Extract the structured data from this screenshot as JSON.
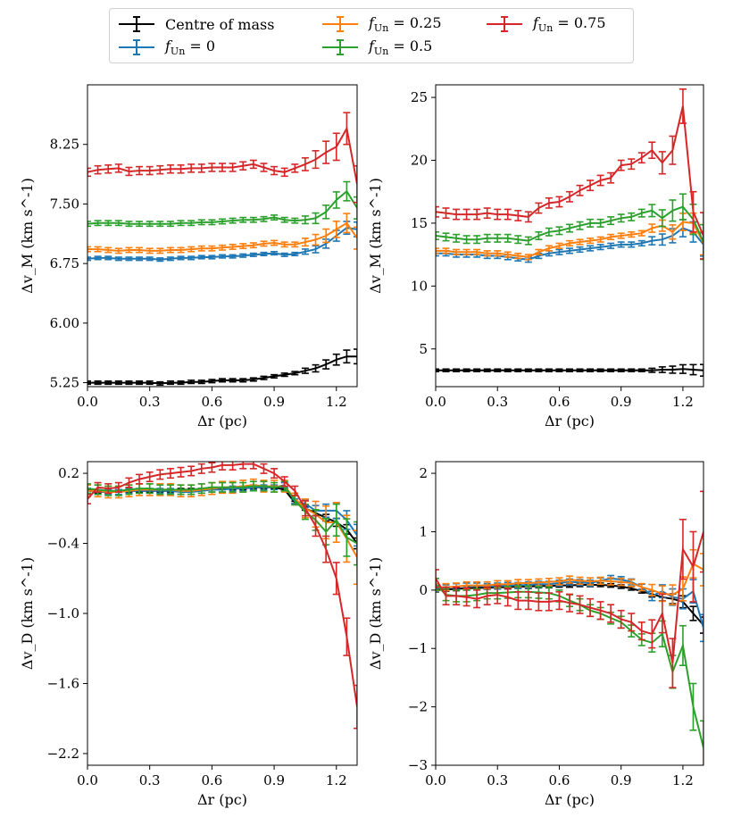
{
  "legend": {
    "items": [
      {
        "label": "Centre of mass",
        "color": "#000000"
      },
      {
        "label": "f_Un = 0",
        "sub": "Un",
        "prefix": "f",
        "suffix": "=  0",
        "color": "#1f77b4"
      },
      {
        "label": "f_Un = 0.25",
        "sub": "Un",
        "prefix": "f",
        "suffix": "=  0.25",
        "color": "#ff7f0e"
      },
      {
        "label": "f_Un = 0.5",
        "sub": "Un",
        "prefix": "f",
        "suffix": "=  0.5",
        "color": "#2ca02c"
      },
      {
        "label": "f_Un = 0.75",
        "sub": "Un",
        "prefix": "f",
        "suffix": "=  0.75",
        "color": "#d62728"
      }
    ]
  },
  "chart_data": [
    {
      "type": "line",
      "panel": "top-left",
      "xlabel": "Δr (pc)",
      "ylabel": "Δv_M (km s^-1)",
      "xlim": [
        0.0,
        1.3
      ],
      "ylim": [
        5.2,
        9.0
      ],
      "xticks": [
        "0.0",
        "0.3",
        "0.6",
        "0.9",
        "1.2"
      ],
      "xtick_values": [
        0.0,
        0.3,
        0.6,
        0.9,
        1.2
      ],
      "yticks": [
        "5.25",
        "6.00",
        "6.75",
        "7.50",
        "8.25"
      ],
      "ytick_values": [
        5.25,
        6.0,
        6.75,
        7.5,
        8.25
      ],
      "x": [
        0.0,
        0.05,
        0.1,
        0.15,
        0.2,
        0.25,
        0.3,
        0.35,
        0.4,
        0.45,
        0.5,
        0.55,
        0.6,
        0.65,
        0.7,
        0.75,
        0.8,
        0.85,
        0.9,
        0.95,
        1.0,
        1.05,
        1.1,
        1.15,
        1.2,
        1.25,
        1.3
      ],
      "series": [
        {
          "name": "Centre of mass",
          "color": "#000000",
          "err": 0.02,
          "values": [
            5.25,
            5.25,
            5.25,
            5.25,
            5.25,
            5.25,
            5.25,
            5.24,
            5.25,
            5.25,
            5.26,
            5.26,
            5.27,
            5.28,
            5.28,
            5.28,
            5.29,
            5.31,
            5.33,
            5.35,
            5.37,
            5.4,
            5.43,
            5.48,
            5.54,
            5.58,
            5.58
          ]
        },
        {
          "name": "f_Un = 0",
          "color": "#1f77b4",
          "err": 0.02,
          "values": [
            6.81,
            6.82,
            6.82,
            6.81,
            6.81,
            6.81,
            6.81,
            6.8,
            6.81,
            6.82,
            6.82,
            6.83,
            6.83,
            6.84,
            6.84,
            6.85,
            6.86,
            6.87,
            6.88,
            6.86,
            6.87,
            6.9,
            6.93,
            7.0,
            7.1,
            7.2,
            7.18
          ]
        },
        {
          "name": "f_Un = 0.25",
          "color": "#ff7f0e",
          "err": 0.03,
          "values": [
            6.93,
            6.93,
            6.92,
            6.91,
            6.92,
            6.92,
            6.91,
            6.91,
            6.92,
            6.92,
            6.93,
            6.94,
            6.94,
            6.95,
            6.96,
            6.97,
            6.98,
            7.0,
            7.01,
            6.99,
            6.99,
            7.02,
            7.05,
            7.1,
            7.18,
            7.26,
            7.07
          ]
        },
        {
          "name": "f_Un = 0.5",
          "color": "#2ca02c",
          "err": 0.03,
          "values": [
            7.25,
            7.26,
            7.26,
            7.26,
            7.25,
            7.25,
            7.25,
            7.25,
            7.25,
            7.26,
            7.26,
            7.27,
            7.27,
            7.28,
            7.29,
            7.3,
            7.3,
            7.31,
            7.33,
            7.3,
            7.29,
            7.3,
            7.32,
            7.4,
            7.55,
            7.66,
            7.45
          ]
        },
        {
          "name": "f_Un = 0.75",
          "color": "#d62728",
          "err": 0.05,
          "values": [
            7.9,
            7.93,
            7.94,
            7.95,
            7.91,
            7.92,
            7.92,
            7.93,
            7.94,
            7.94,
            7.95,
            7.95,
            7.96,
            7.96,
            7.96,
            7.98,
            8.0,
            7.96,
            7.92,
            7.9,
            7.95,
            8.0,
            8.06,
            8.15,
            8.22,
            8.45,
            7.75
          ]
        }
      ]
    },
    {
      "type": "line",
      "panel": "top-right",
      "xlabel": "Δr (pc)",
      "ylabel": "Δv_M (km s^-1)",
      "xlim": [
        0.0,
        1.3
      ],
      "ylim": [
        2.0,
        26.0
      ],
      "xticks": [
        "0.0",
        "0.3",
        "0.6",
        "0.9",
        "1.2"
      ],
      "xtick_values": [
        0.0,
        0.3,
        0.6,
        0.9,
        1.2
      ],
      "yticks": [
        "5",
        "10",
        "15",
        "20",
        "25"
      ],
      "ytick_values": [
        5,
        10,
        15,
        20,
        25
      ],
      "x": [
        0.0,
        0.05,
        0.1,
        0.15,
        0.2,
        0.25,
        0.3,
        0.35,
        0.4,
        0.45,
        0.5,
        0.55,
        0.6,
        0.65,
        0.7,
        0.75,
        0.8,
        0.85,
        0.9,
        0.95,
        1.0,
        1.05,
        1.1,
        1.15,
        1.2,
        1.25,
        1.3
      ],
      "series": [
        {
          "name": "Centre of mass",
          "color": "#000000",
          "err": 0.1,
          "values": [
            3.3,
            3.3,
            3.3,
            3.3,
            3.3,
            3.3,
            3.3,
            3.3,
            3.3,
            3.3,
            3.3,
            3.3,
            3.3,
            3.3,
            3.3,
            3.3,
            3.3,
            3.3,
            3.3,
            3.3,
            3.3,
            3.3,
            3.35,
            3.35,
            3.4,
            3.35,
            3.3
          ]
        },
        {
          "name": "f_Un = 0",
          "color": "#1f77b4",
          "err": 0.2,
          "values": [
            12.6,
            12.6,
            12.5,
            12.5,
            12.5,
            12.4,
            12.4,
            12.3,
            12.2,
            12.1,
            12.4,
            12.6,
            12.7,
            12.8,
            12.9,
            13.0,
            13.1,
            13.2,
            13.3,
            13.3,
            13.4,
            13.6,
            13.7,
            14.0,
            14.6,
            14.3,
            13.3
          ]
        },
        {
          "name": "f_Un = 0.25",
          "color": "#ff7f0e",
          "err": 0.2,
          "values": [
            12.8,
            12.8,
            12.7,
            12.7,
            12.7,
            12.6,
            12.6,
            12.5,
            12.4,
            12.3,
            12.7,
            13.0,
            13.2,
            13.4,
            13.5,
            13.6,
            13.7,
            13.9,
            14.0,
            14.1,
            14.2,
            14.6,
            14.8,
            14.3,
            15.1,
            15.0,
            13.4
          ]
        },
        {
          "name": "f_Un = 0.5",
          "color": "#2ca02c",
          "err": 0.3,
          "values": [
            14.0,
            13.9,
            13.8,
            13.7,
            13.7,
            13.8,
            13.8,
            13.8,
            13.7,
            13.6,
            14.0,
            14.3,
            14.4,
            14.6,
            14.8,
            15.0,
            15.0,
            15.2,
            15.4,
            15.5,
            15.8,
            16.0,
            15.4,
            16.0,
            16.3,
            15.3,
            13.5
          ]
        },
        {
          "name": "f_Un = 0.75",
          "color": "#d62728",
          "err": 0.4,
          "values": [
            15.9,
            15.8,
            15.7,
            15.7,
            15.7,
            15.8,
            15.7,
            15.7,
            15.6,
            15.5,
            16.2,
            16.6,
            16.7,
            17.1,
            17.6,
            18.0,
            18.4,
            18.6,
            19.6,
            19.7,
            20.2,
            20.8,
            19.8,
            20.8,
            24.3,
            15.9,
            14.0
          ]
        }
      ]
    },
    {
      "type": "line",
      "panel": "bottom-left",
      "xlabel": "Δr (pc)",
      "ylabel": "Δv_D (km s^-1)",
      "xlim": [
        0.0,
        1.3
      ],
      "ylim": [
        -2.3,
        0.3
      ],
      "xticks": [
        "0.0",
        "0.3",
        "0.6",
        "0.9",
        "1.2"
      ],
      "xtick_values": [
        0.0,
        0.3,
        0.6,
        0.9,
        1.2
      ],
      "yticks": [
        "−2.2",
        "−1.6",
        "−1.0",
        "−0.4",
        "0.2"
      ],
      "ytick_values": [
        -2.2,
        -1.6,
        -1.0,
        -0.4,
        0.2
      ],
      "x": [
        0.0,
        0.05,
        0.1,
        0.15,
        0.2,
        0.25,
        0.3,
        0.35,
        0.4,
        0.45,
        0.5,
        0.55,
        0.6,
        0.65,
        0.7,
        0.75,
        0.8,
        0.85,
        0.9,
        0.95,
        1.0,
        1.05,
        1.1,
        1.15,
        1.2,
        1.25,
        1.3
      ],
      "series": [
        {
          "name": "Centre of mass",
          "color": "#000000",
          "err": 0.01,
          "values": [
            0.06,
            0.04,
            0.04,
            0.05,
            0.05,
            0.05,
            0.05,
            0.05,
            0.05,
            0.06,
            0.06,
            0.06,
            0.07,
            0.07,
            0.07,
            0.07,
            0.08,
            0.08,
            0.08,
            0.06,
            -0.05,
            -0.1,
            -0.14,
            -0.18,
            -0.22,
            -0.28,
            -0.4
          ]
        },
        {
          "name": "f_Un = 0",
          "color": "#1f77b4",
          "err": 0.02,
          "values": [
            0.05,
            0.04,
            0.04,
            0.04,
            0.05,
            0.05,
            0.05,
            0.05,
            0.05,
            0.04,
            0.04,
            0.05,
            0.06,
            0.06,
            0.07,
            0.07,
            0.08,
            0.08,
            0.08,
            0.1,
            -0.04,
            -0.06,
            -0.12,
            -0.12,
            -0.12,
            -0.2,
            -0.33
          ]
        },
        {
          "name": "f_Un = 0.25",
          "color": "#ff7f0e",
          "err": 0.05,
          "values": [
            0.05,
            0.05,
            0.04,
            0.04,
            0.05,
            0.06,
            0.06,
            0.06,
            0.06,
            0.05,
            0.05,
            0.06,
            0.07,
            0.08,
            0.08,
            0.09,
            0.1,
            0.09,
            0.09,
            0.09,
            -0.02,
            -0.1,
            -0.15,
            -0.22,
            -0.22,
            -0.36,
            -0.52
          ]
        },
        {
          "name": "f_Un = 0.5",
          "color": "#2ca02c",
          "err": 0.04,
          "values": [
            0.07,
            0.06,
            0.05,
            0.05,
            0.06,
            0.07,
            0.07,
            0.06,
            0.06,
            0.06,
            0.06,
            0.07,
            0.08,
            0.08,
            0.08,
            0.08,
            0.09,
            0.09,
            0.08,
            0.09,
            -0.03,
            -0.13,
            -0.2,
            -0.3,
            -0.2,
            -0.35,
            -0.4
          ]
        },
        {
          "name": "f_Un = 0.75",
          "color": "#d62728",
          "err": 0.04,
          "values": [
            -0.02,
            0.08,
            0.07,
            0.08,
            0.12,
            0.15,
            0.17,
            0.19,
            0.2,
            0.21,
            0.22,
            0.24,
            0.25,
            0.27,
            0.27,
            0.28,
            0.28,
            0.24,
            0.2,
            0.13,
            0.05,
            -0.1,
            -0.25,
            -0.45,
            -0.7,
            -1.2,
            -1.8
          ]
        }
      ]
    },
    {
      "type": "line",
      "panel": "bottom-right",
      "xlabel": "Δr (pc)",
      "ylabel": "Δv_D (km s^-1)",
      "xlim": [
        0.0,
        1.3
      ],
      "ylim": [
        -3.0,
        2.2
      ],
      "xticks": [
        "0.0",
        "0.3",
        "0.6",
        "0.9",
        "1.2"
      ],
      "xtick_values": [
        0.0,
        0.3,
        0.6,
        0.9,
        1.2
      ],
      "yticks": [
        "−3",
        "−2",
        "−1",
        "0",
        "1",
        "2"
      ],
      "ytick_values": [
        -3,
        -2,
        -1,
        0,
        1,
        2
      ],
      "x": [
        0.0,
        0.05,
        0.1,
        0.15,
        0.2,
        0.25,
        0.3,
        0.35,
        0.4,
        0.45,
        0.5,
        0.55,
        0.6,
        0.65,
        0.7,
        0.75,
        0.8,
        0.85,
        0.9,
        0.95,
        1.0,
        1.05,
        1.1,
        1.15,
        1.2,
        1.25,
        1.3
      ],
      "series": [
        {
          "name": "Centre of mass",
          "color": "#000000",
          "err": 0.03,
          "values": [
            0.0,
            0.01,
            0.02,
            0.03,
            0.04,
            0.04,
            0.05,
            0.05,
            0.06,
            0.06,
            0.07,
            0.07,
            0.08,
            0.08,
            0.09,
            0.09,
            0.09,
            0.08,
            0.06,
            0.03,
            -0.02,
            -0.07,
            -0.12,
            -0.15,
            -0.2,
            -0.4,
            -0.6
          ]
        },
        {
          "name": "f_Un = 0",
          "color": "#1f77b4",
          "err": 0.05,
          "values": [
            0.03,
            0.04,
            0.06,
            0.07,
            0.07,
            0.06,
            0.07,
            0.08,
            0.08,
            0.09,
            0.1,
            0.1,
            0.12,
            0.14,
            0.13,
            0.12,
            0.16,
            0.2,
            0.18,
            0.14,
            0.05,
            -0.1,
            -0.02,
            -0.12,
            -0.15,
            -0.02,
            -0.65
          ]
        },
        {
          "name": "f_Un = 0.25",
          "color": "#ff7f0e",
          "err": 0.06,
          "values": [
            0.05,
            0.05,
            0.06,
            0.08,
            0.08,
            0.08,
            0.1,
            0.1,
            0.12,
            0.12,
            0.13,
            0.14,
            0.15,
            0.18,
            0.16,
            0.15,
            0.16,
            0.15,
            0.14,
            0.12,
            0.05,
            0.0,
            -0.06,
            -0.08,
            0.02,
            0.45,
            0.35
          ]
        },
        {
          "name": "f_Un = 0.5",
          "color": "#2ca02c",
          "err": 0.1,
          "values": [
            0.1,
            -0.08,
            -0.1,
            -0.1,
            -0.08,
            -0.05,
            -0.05,
            -0.04,
            -0.03,
            -0.03,
            -0.04,
            -0.05,
            -0.1,
            -0.18,
            -0.25,
            -0.35,
            -0.4,
            -0.48,
            -0.55,
            -0.7,
            -0.85,
            -0.9,
            -0.75,
            -1.4,
            -0.95,
            -2.0,
            -2.7
          ]
        },
        {
          "name": "f_Un = 0.75",
          "color": "#d62728",
          "err": 0.15,
          "values": [
            0.2,
            -0.1,
            -0.1,
            -0.12,
            -0.15,
            -0.1,
            -0.08,
            -0.12,
            -0.18,
            -0.18,
            -0.2,
            -0.2,
            -0.18,
            -0.22,
            -0.25,
            -0.3,
            -0.35,
            -0.4,
            -0.5,
            -0.55,
            -0.7,
            -0.75,
            -0.4,
            -1.25,
            0.7,
            0.4,
            1.0
          ]
        }
      ]
    }
  ]
}
